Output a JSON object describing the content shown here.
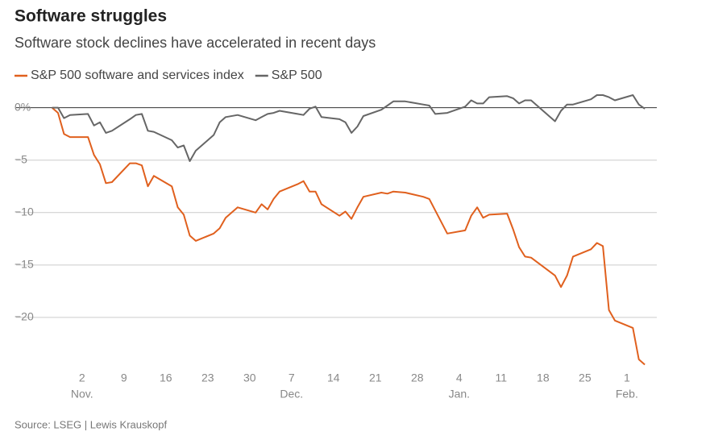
{
  "chart_data": {
    "type": "line",
    "title": "Software struggles",
    "subtitle": "Software stock declines have accelerated in recent days",
    "source": "Source: LSEG | Lewis Krauskopf",
    "x": [
      "10-28",
      "10-29",
      "10-30",
      "10-31",
      "11-03",
      "11-04",
      "11-05",
      "11-06",
      "11-07",
      "11-10",
      "11-11",
      "11-12",
      "11-13",
      "11-14",
      "11-17",
      "11-18",
      "11-19",
      "11-20",
      "11-21",
      "11-24",
      "11-25",
      "11-26",
      "11-28",
      "12-01",
      "12-02",
      "12-03",
      "12-04",
      "12-05",
      "12-08",
      "12-09",
      "12-10",
      "12-11",
      "12-12",
      "12-15",
      "12-16",
      "12-17",
      "12-18",
      "12-19",
      "12-22",
      "12-23",
      "12-24",
      "12-26",
      "12-29",
      "12-30",
      "12-31",
      "01-02",
      "01-05",
      "01-06",
      "01-07",
      "01-08",
      "01-09",
      "01-12",
      "01-13",
      "01-14",
      "01-15",
      "01-16",
      "01-20",
      "01-21",
      "01-22",
      "01-23",
      "01-26",
      "01-27",
      "01-28",
      "01-29",
      "01-30",
      "02-02",
      "02-03",
      "02-04"
    ],
    "series": [
      {
        "name": "S&P 500 software and services index",
        "color": "#e0601e",
        "values": [
          0,
          -0.5,
          -2.5,
          -2.8,
          -2.8,
          -4.5,
          -5.4,
          -7.2,
          -7.1,
          -5.3,
          -5.3,
          -5.5,
          -7.5,
          -6.5,
          -7.5,
          -9.5,
          -10.2,
          -12.2,
          -12.7,
          -12.0,
          -11.5,
          -10.5,
          -9.5,
          -10.0,
          -9.2,
          -9.7,
          -8.7,
          -8.0,
          -7.3,
          -7.0,
          -8.0,
          -8.0,
          -9.2,
          -10.3,
          -9.9,
          -10.6,
          -9.5,
          -8.5,
          -8.1,
          -8.2,
          -8.0,
          -8.1,
          -8.5,
          -8.7,
          -9.8,
          -12.0,
          -11.7,
          -10.3,
          -9.5,
          -10.5,
          -10.2,
          -10.1,
          -11.6,
          -13.3,
          -14.2,
          -14.3,
          -16.0,
          -17.1,
          -16.0,
          -14.2,
          -13.5,
          -12.9,
          -13.2,
          -19.3,
          -20.3,
          -21.0,
          -24.0,
          -24.5
        ]
      },
      {
        "name": "S&P 500",
        "color": "#666666",
        "values": [
          0,
          0,
          -1.0,
          -0.7,
          -0.6,
          -1.7,
          -1.4,
          -2.4,
          -2.2,
          -1.1,
          -0.7,
          -0.6,
          -2.2,
          -2.3,
          -3.1,
          -3.8,
          -3.6,
          -5.1,
          -4.1,
          -2.6,
          -1.4,
          -0.9,
          -0.7,
          -1.2,
          -0.9,
          -0.6,
          -0.5,
          -0.3,
          -0.6,
          -0.7,
          -0.1,
          0.1,
          -0.9,
          -1.1,
          -1.4,
          -2.4,
          -1.8,
          -0.8,
          -0.2,
          0.2,
          0.6,
          0.6,
          0.3,
          0.2,
          -0.6,
          -0.5,
          0.1,
          0.7,
          0.4,
          0.4,
          1.0,
          1.1,
          0.9,
          0.4,
          0.7,
          0.7,
          -1.3,
          -0.3,
          0.3,
          0.3,
          0.8,
          1.2,
          1.2,
          1.0,
          0.7,
          1.2,
          0.3,
          -0.1
        ]
      }
    ],
    "xlim": [
      "10-22",
      "02-06"
    ],
    "xticks": [
      {
        "value": "11-02",
        "label": "2",
        "month": "Nov."
      },
      {
        "value": "11-09",
        "label": "9"
      },
      {
        "value": "11-16",
        "label": "16"
      },
      {
        "value": "11-23",
        "label": "23"
      },
      {
        "value": "11-30",
        "label": "30"
      },
      {
        "value": "12-07",
        "label": "7",
        "month": "Dec."
      },
      {
        "value": "12-14",
        "label": "14"
      },
      {
        "value": "12-21",
        "label": "21"
      },
      {
        "value": "12-28",
        "label": "28"
      },
      {
        "value": "01-04",
        "label": "4",
        "month": "Jan."
      },
      {
        "value": "01-11",
        "label": "11"
      },
      {
        "value": "01-18",
        "label": "18"
      },
      {
        "value": "01-25",
        "label": "25"
      },
      {
        "value": "02-01",
        "label": "1",
        "month": "Feb."
      }
    ],
    "ylim": [
      -25,
      1.2
    ],
    "yticks": [
      {
        "value": 0,
        "label": "0%"
      },
      {
        "value": -5,
        "label": "−5"
      },
      {
        "value": -10,
        "label": "−10"
      },
      {
        "value": -15,
        "label": "−15"
      },
      {
        "value": -20,
        "label": "−20"
      }
    ],
    "grid": true
  }
}
